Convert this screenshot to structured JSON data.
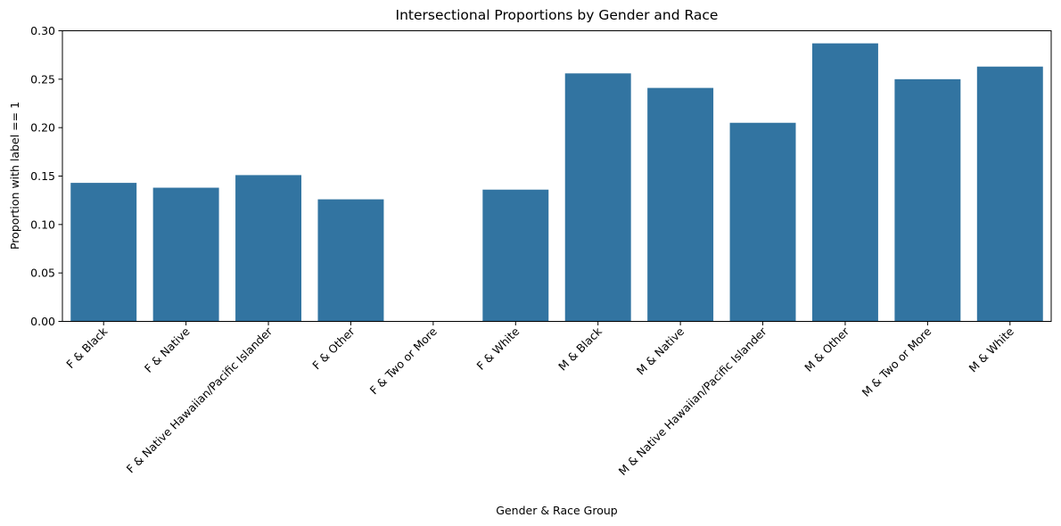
{
  "chart_data": {
    "type": "bar",
    "title": "Intersectional Proportions by Gender and Race",
    "xlabel": "Gender & Race Group",
    "ylabel": "Proportion with label == 1",
    "ylim": [
      0,
      0.3
    ],
    "yticks": [
      "0.00",
      "0.05",
      "0.10",
      "0.15",
      "0.20",
      "0.25",
      "0.30"
    ],
    "grid": false,
    "bar_color": "#3274a1",
    "categories": [
      "F & Black",
      "F & Native",
      "F & Native Hawaiian/Pacific Islander",
      "F & Other",
      "F & Two or More",
      "F & White",
      "M & Black",
      "M & Native",
      "M & Native Hawaiian/Pacific Islander",
      "M & Other",
      "M & Two or More",
      "M & White"
    ],
    "values": [
      0.143,
      0.138,
      0.151,
      0.126,
      0.0,
      0.136,
      0.256,
      0.241,
      0.205,
      0.287,
      0.25,
      0.263
    ]
  }
}
